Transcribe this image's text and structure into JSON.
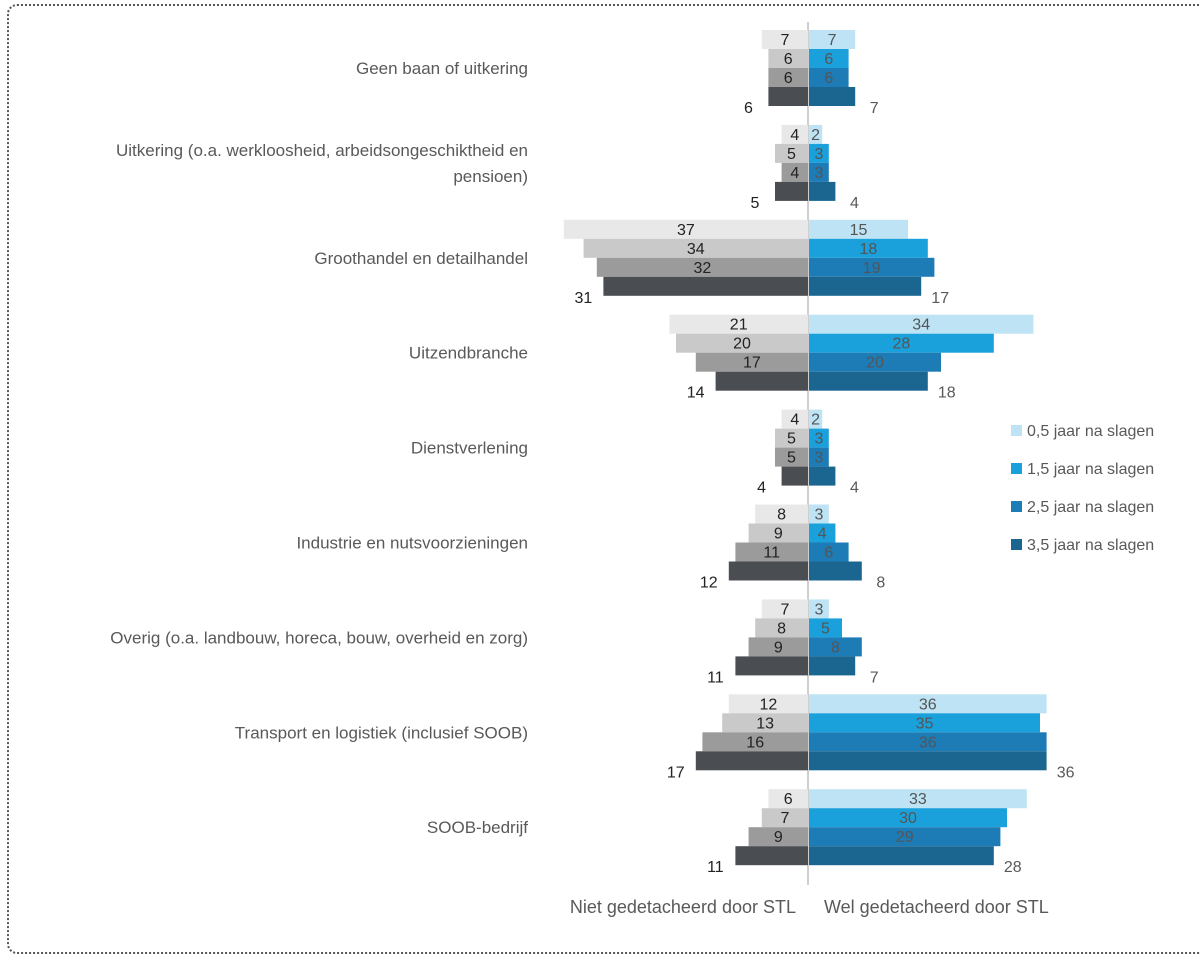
{
  "chart_data": {
    "type": "bar",
    "orientation": "horizontal-diverging",
    "categories": [
      [
        "Geen baan of uitkering"
      ],
      [
        "Uitkering (o.a. werkloosheid, arbeidsongeschiktheid en",
        "pensioen)"
      ],
      [
        "Groothandel en detailhandel"
      ],
      [
        "Uitzendbranche"
      ],
      [
        "Dienstverlening"
      ],
      [
        "Industrie en nutsvoorzieningen"
      ],
      [
        "Overig (o.a. landbouw, horeca, bouw, overheid en zorg)"
      ],
      [
        "Transport en logistiek (inclusief SOOB)"
      ],
      [
        "SOOB-bedrijf"
      ]
    ],
    "sides": {
      "left": "Niet gedetacheerd door STL",
      "right": "Wel gedetacheerd door STL"
    },
    "series": [
      {
        "name": "0,5 jaar na slagen",
        "left": [
          7,
          4,
          37,
          21,
          4,
          8,
          7,
          12,
          6
        ],
        "right": [
          7,
          2,
          15,
          34,
          2,
          3,
          3,
          36,
          33
        ]
      },
      {
        "name": "1,5 jaar na slagen",
        "left": [
          6,
          5,
          34,
          20,
          5,
          9,
          8,
          13,
          7
        ],
        "right": [
          6,
          3,
          18,
          28,
          3,
          4,
          5,
          35,
          30
        ]
      },
      {
        "name": "2,5 jaar na slagen",
        "left": [
          6,
          4,
          32,
          17,
          5,
          11,
          9,
          16,
          9
        ],
        "right": [
          6,
          3,
          19,
          20,
          3,
          6,
          8,
          36,
          29
        ]
      },
      {
        "name": "3,5 jaar na slagen",
        "left": [
          6,
          5,
          31,
          14,
          4,
          12,
          11,
          17,
          11
        ],
        "right": [
          7,
          4,
          17,
          18,
          4,
          8,
          7,
          36,
          28
        ]
      }
    ],
    "colors": {
      "left": [
        "#e8e8e8",
        "#c9c9c9",
        "#9b9b9b",
        "#4a4d52"
      ],
      "right": [
        "#bde3f4",
        "#1aa0da",
        "#1d7bb5",
        "#1a6690"
      ]
    },
    "legend_position": "right",
    "grid": false
  }
}
